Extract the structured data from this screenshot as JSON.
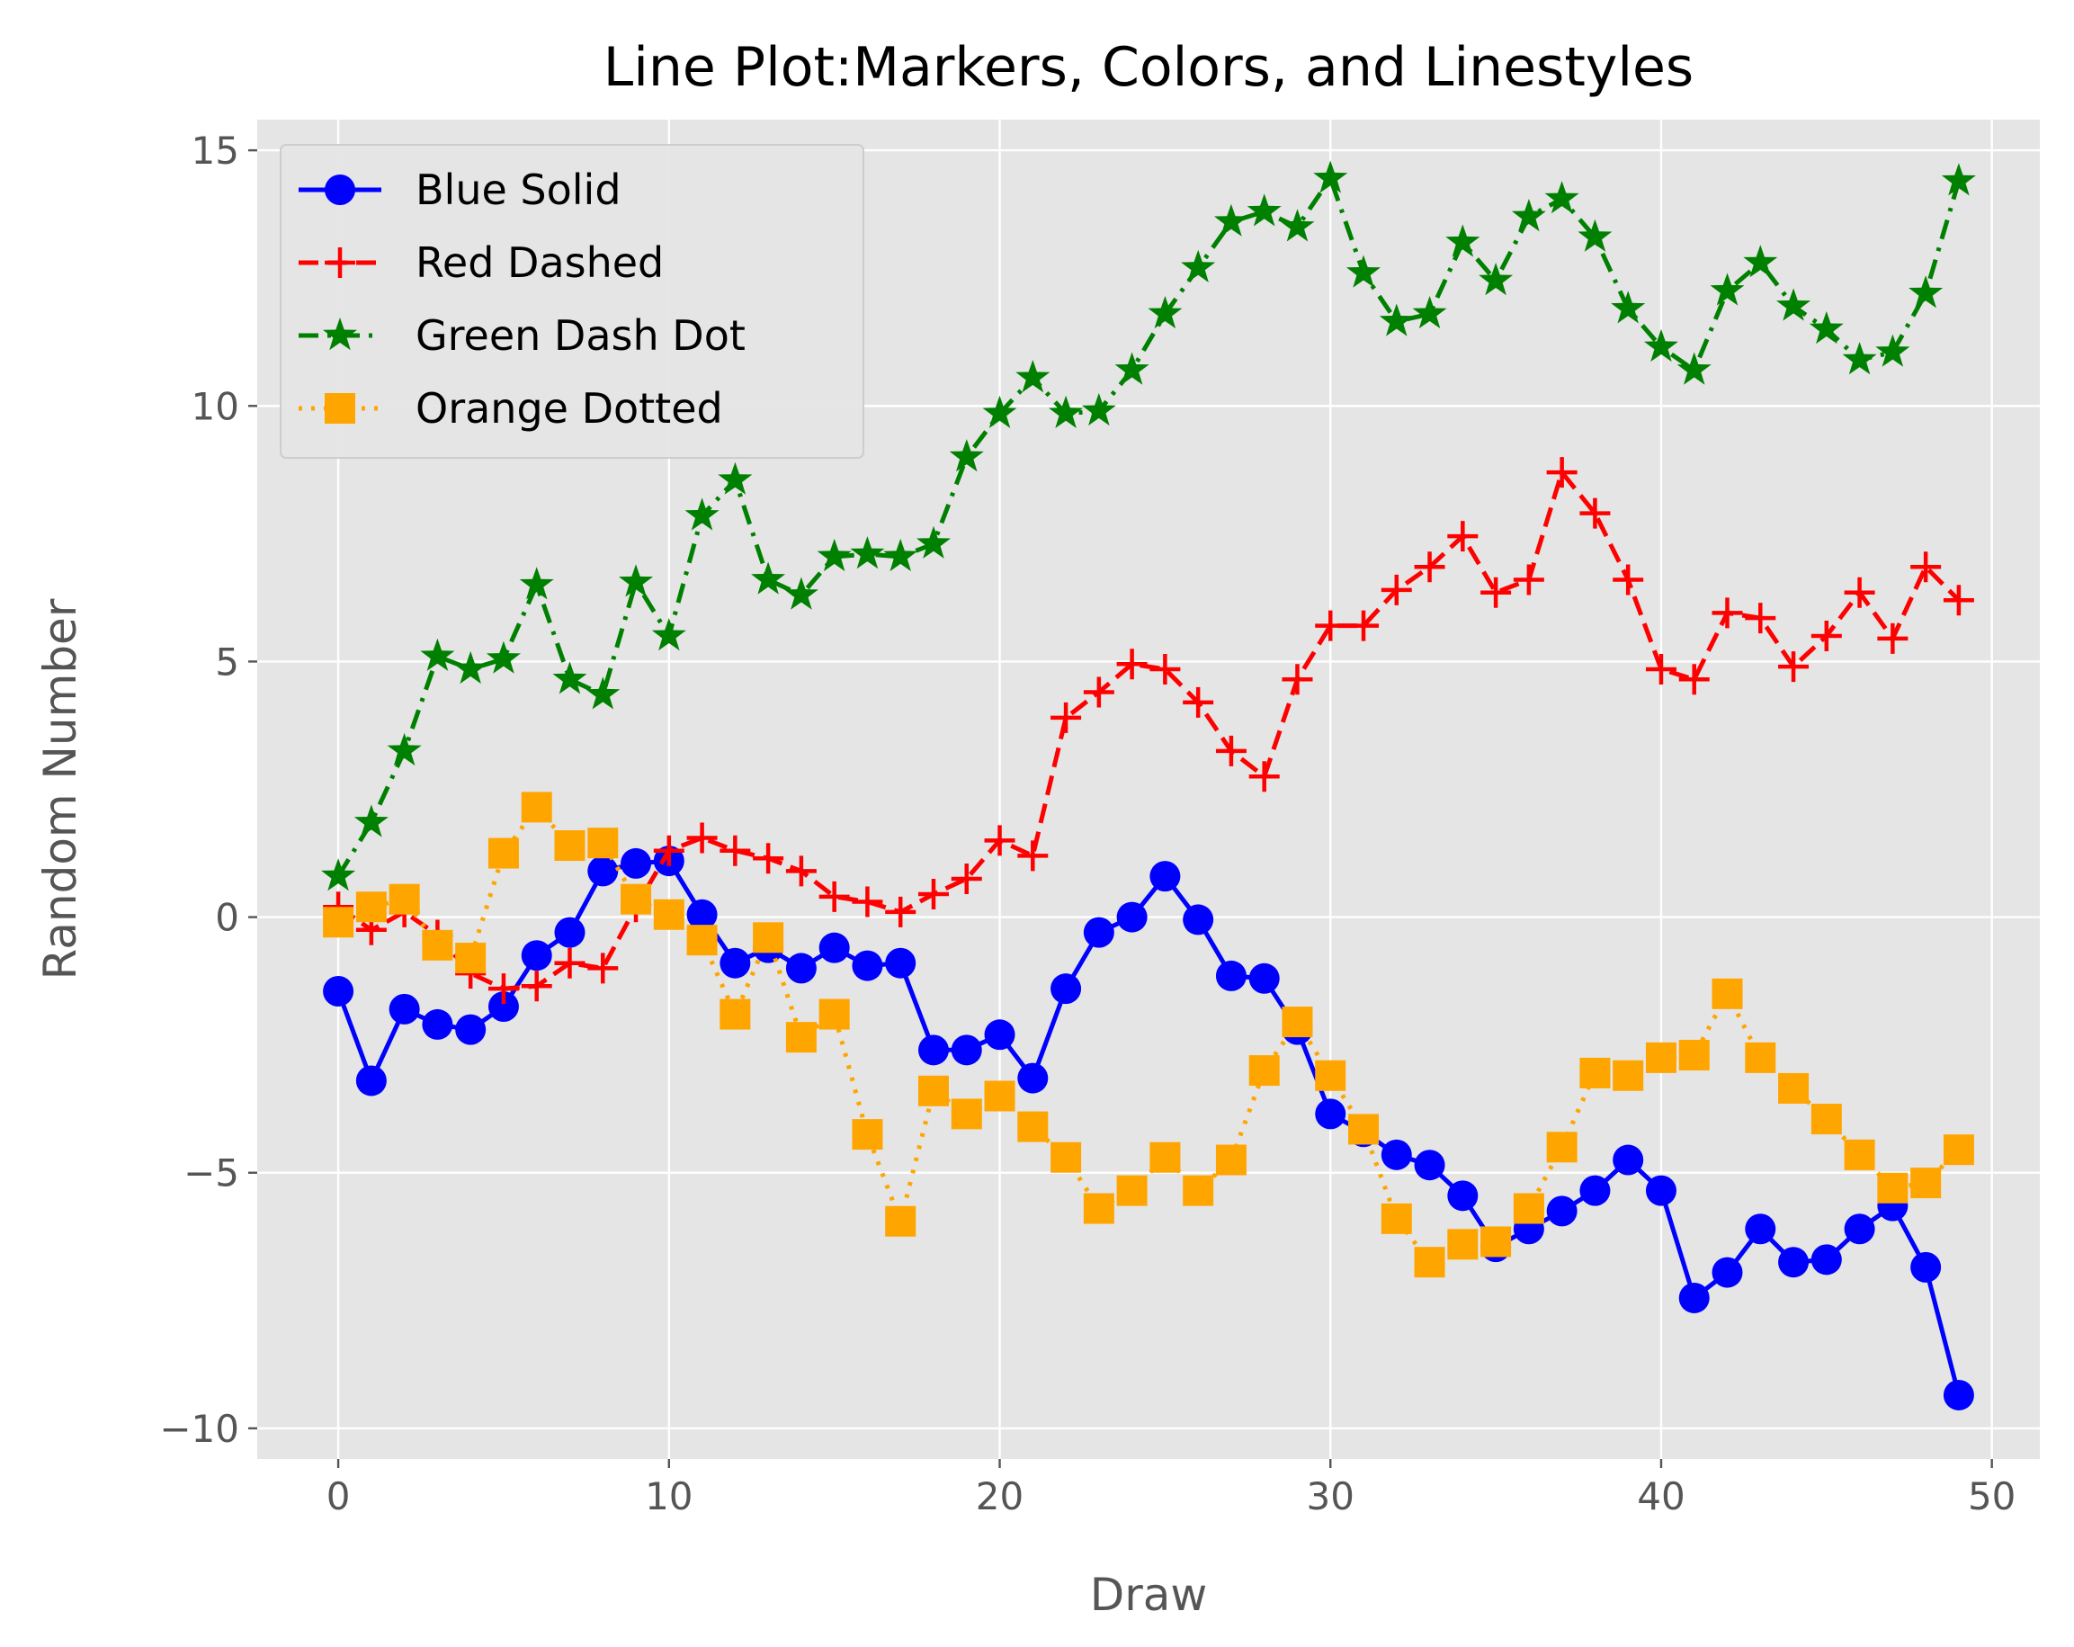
{
  "chart_data": {
    "type": "line",
    "title": "Line Plot:Markers, Colors, and Linestyles",
    "xlabel": "Draw",
    "ylabel": "Random Number",
    "xlim": [
      -2.45,
      51.45
    ],
    "ylim": [
      -10.6,
      15.6
    ],
    "xticks": [
      0,
      10,
      20,
      30,
      40,
      50
    ],
    "yticks": [
      -10,
      -5,
      0,
      5,
      10,
      15
    ],
    "xtick_labels": [
      "0",
      "10",
      "20",
      "30",
      "40",
      "50"
    ],
    "ytick_labels": [
      "−10",
      "−5",
      "0",
      "5",
      "10",
      "15"
    ],
    "grid": true,
    "background": "#e5e5e5",
    "legend": "upper-left",
    "x": [
      0,
      1,
      2,
      3,
      4,
      5,
      6,
      7,
      8,
      9,
      10,
      11,
      12,
      13,
      14,
      15,
      16,
      17,
      18,
      19,
      20,
      21,
      22,
      23,
      24,
      25,
      26,
      27,
      28,
      29,
      30,
      31,
      32,
      33,
      34,
      35,
      36,
      37,
      38,
      39,
      40,
      41,
      42,
      43,
      44,
      45,
      46,
      47,
      48,
      49
    ],
    "series": [
      {
        "name": "Blue Solid",
        "color": "#0000ff",
        "linestyle": "solid",
        "marker": "circle",
        "values": [
          -1.45,
          -3.2,
          -1.8,
          -2.1,
          -2.2,
          -1.75,
          -0.75,
          -0.3,
          0.9,
          1.05,
          1.1,
          0.05,
          -0.9,
          -0.6,
          -1.0,
          -0.6,
          -0.95,
          -0.9,
          -2.6,
          -2.6,
          -2.3,
          -3.15,
          -1.4,
          -0.3,
          0.0,
          0.8,
          -0.05,
          -1.15,
          -1.2,
          -2.2,
          -3.85,
          -4.2,
          -4.65,
          -4.85,
          -5.45,
          -6.45,
          -6.1,
          -5.75,
          -5.35,
          -4.75,
          -5.35,
          -7.45,
          -6.95,
          -6.1,
          -6.75,
          -6.7,
          -6.1,
          -5.65,
          -6.85,
          -9.35
        ]
      },
      {
        "name": "Red Dashed",
        "color": "#ff0000",
        "linestyle": "dashed",
        "marker": "plus",
        "values": [
          0.2,
          -0.25,
          0.1,
          -0.35,
          -1.1,
          -1.4,
          -1.35,
          -0.9,
          -1.0,
          0.2,
          1.3,
          1.55,
          1.3,
          1.15,
          0.9,
          0.4,
          0.3,
          0.1,
          0.45,
          0.75,
          1.5,
          1.2,
          3.9,
          4.4,
          4.95,
          4.85,
          4.2,
          3.25,
          2.75,
          4.65,
          5.7,
          5.7,
          6.4,
          6.85,
          7.45,
          6.35,
          6.6,
          8.7,
          7.9,
          6.6,
          4.85,
          4.65,
          5.95,
          5.85,
          4.9,
          5.5,
          6.35,
          5.45,
          6.85,
          6.2
        ]
      },
      {
        "name": "Green Dash Dot",
        "color": "#008000",
        "linestyle": "dashdot",
        "marker": "star",
        "values": [
          0.8,
          1.85,
          3.25,
          5.1,
          4.85,
          5.05,
          6.5,
          4.65,
          4.35,
          6.55,
          5.5,
          7.85,
          8.55,
          6.6,
          6.3,
          7.05,
          7.1,
          7.05,
          7.3,
          9.0,
          9.85,
          10.55,
          9.85,
          9.9,
          10.7,
          11.8,
          12.7,
          13.6,
          13.8,
          13.5,
          14.45,
          12.6,
          11.65,
          11.8,
          13.2,
          12.45,
          13.7,
          14.05,
          13.3,
          11.9,
          11.15,
          10.7,
          12.25,
          12.8,
          11.95,
          11.5,
          10.9,
          11.05,
          12.2,
          14.4
        ]
      },
      {
        "name": "Orange Dotted",
        "color": "#ffa500",
        "linestyle": "dotted",
        "marker": "square",
        "values": [
          -0.1,
          0.2,
          0.35,
          -0.55,
          -0.8,
          1.25,
          2.15,
          1.4,
          1.45,
          0.35,
          0.05,
          -0.45,
          -1.9,
          -0.4,
          -2.35,
          -1.9,
          -4.25,
          -5.95,
          -3.4,
          -3.85,
          -3.5,
          -4.1,
          -4.7,
          -5.7,
          -5.35,
          -4.7,
          -5.35,
          -4.75,
          -3.0,
          -2.05,
          -3.1,
          -4.15,
          -5.9,
          -6.75,
          -6.4,
          -6.35,
          -5.7,
          -4.5,
          -3.05,
          -3.1,
          -2.75,
          -2.7,
          -1.5,
          -2.75,
          -3.35,
          -3.95,
          -4.65,
          -5.3,
          -5.2,
          -4.55
        ]
      }
    ]
  }
}
